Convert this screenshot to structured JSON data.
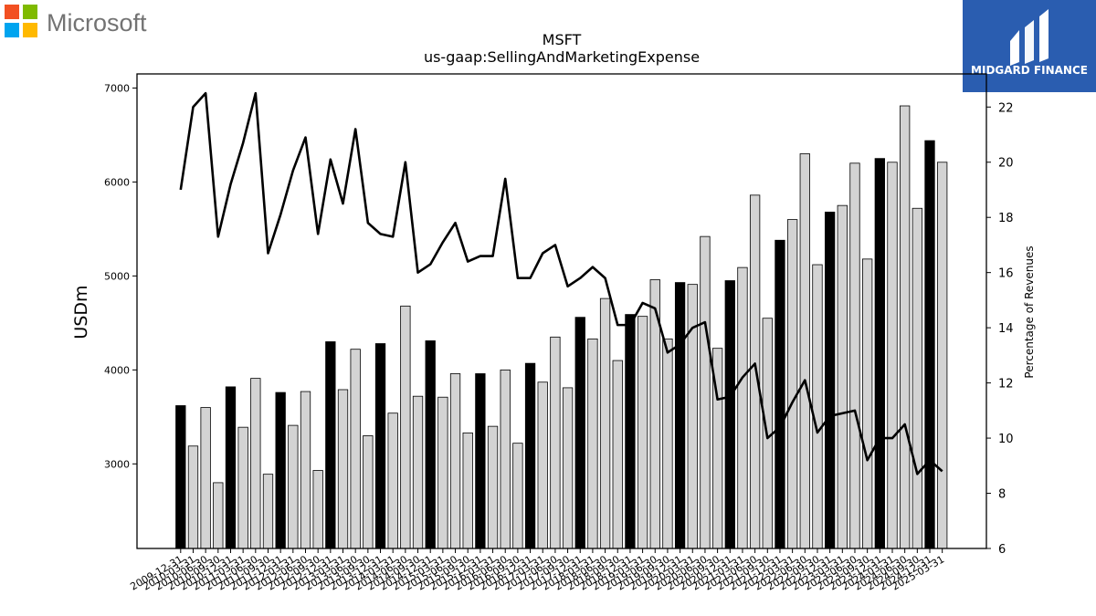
{
  "brand": {
    "left_logo_text": "Microsoft",
    "logo_colors": [
      "#f25022",
      "#7fba00",
      "#00a4ef",
      "#ffb900"
    ],
    "right_badge_text": "MIDGARD FINANCE",
    "right_badge_color": "#2a5db0"
  },
  "chart_data": {
    "type": "bar",
    "title": "MSFT",
    "subtitle": "us-gaap:SellingAndMarketingExpense",
    "ylabel": "USDm",
    "y2label": "Percentage of Revenues",
    "ylim": [
      2100,
      7150
    ],
    "y2lim": [
      6,
      23.2
    ],
    "yticks": [
      3000,
      4000,
      5000,
      6000,
      7000
    ],
    "y2ticks": [
      6,
      8,
      10,
      12,
      14,
      16,
      18,
      20,
      22
    ],
    "bar_colors": {
      "annual": "#000000",
      "quarter": "#d3d3d3"
    },
    "line_color": "#000000",
    "categories": [
      "2009-12-31",
      "2010-03-31",
      "2010-06-30",
      "2010-09-30",
      "2010-12-31",
      "2011-03-31",
      "2011-06-30",
      "2011-09-30",
      "2011-12-31",
      "2012-03-31",
      "2012-06-30",
      "2012-09-30",
      "2012-12-31",
      "2013-03-31",
      "2013-06-30",
      "2013-09-30",
      "2013-12-31",
      "2014-03-31",
      "2014-06-30",
      "2014-09-30",
      "2014-12-31",
      "2015-03-31",
      "2015-06-30",
      "2015-09-30",
      "2015-12-31",
      "2016-03-31",
      "2016-06-30",
      "2016-09-30",
      "2016-12-31",
      "2017-03-31",
      "2017-06-30",
      "2017-09-30",
      "2017-12-31",
      "2018-03-31",
      "2018-06-30",
      "2018-09-30",
      "2018-12-31",
      "2019-03-31",
      "2019-06-30",
      "2019-09-30",
      "2019-12-31",
      "2020-03-31",
      "2020-06-30",
      "2020-09-30",
      "2020-12-31",
      "2021-03-31",
      "2021-06-30",
      "2021-09-30",
      "2021-12-31",
      "2022-03-31",
      "2022-06-30",
      "2022-09-30",
      "2022-12-31",
      "2023-03-31",
      "2023-06-30",
      "2023-09-30",
      "2023-12-31",
      "2024-03-31",
      "2024-06-30",
      "2024-09-30",
      "2024-12-31",
      "2025-03-31"
    ],
    "tick_labels": [
      "2009-12-31",
      "2010-03-31",
      "2010-06-30",
      "2010-09-30",
      "2010-12-31",
      "2011-03-31",
      "2011-06-30",
      "2011-09-30",
      "2011-12-31",
      "2012-03-31",
      "2012-06-30",
      "2012-09-30",
      "2012-12-31",
      "2013-03-31",
      "2013-06-30",
      "2013-09-30",
      "2013-12-31",
      "2014-03-31",
      "2014-06-30",
      "2014-09-30",
      "2014-12-31",
      "2015-03-31",
      "2015-06-30",
      "2015-09-30",
      "2015-12-31",
      "2016-03-31",
      "2016-06-30",
      "2016-09-30",
      "2016-12-31",
      "2017-03-31",
      "2017-06-30",
      "2017-09-30",
      "2017-12-31",
      "2018-03-31",
      "2018-06-30",
      "2018-09-30",
      "2018-12-31",
      "2019-03-31",
      "2019-06-30",
      "2019-09-30",
      "2019-12-31",
      "2020-03-31",
      "2020-06-30",
      "2020-09-30",
      "2020-12-31",
      "2021-03-31",
      "2021-06-30",
      "2021-09-30",
      "2021-12-31",
      "2022-03-31",
      "2022-06-30",
      "2022-09-30",
      "2022-12-31",
      "2023-03-31",
      "2023-06-30",
      "2023-09-30",
      "2023-12-31",
      "2024-03-31",
      "2024-06-30",
      "2024-09-30",
      "2024-12-31",
      "2025-03-31"
    ],
    "annual_flags": [
      1,
      0,
      0,
      0,
      1,
      0,
      0,
      0,
      1,
      0,
      0,
      0,
      1,
      0,
      0,
      0,
      1,
      0,
      0,
      0,
      1,
      0,
      0,
      0,
      1,
      0,
      0,
      0,
      1,
      0,
      0,
      0,
      1,
      0,
      0,
      0,
      1,
      0,
      0,
      0,
      1,
      0,
      0,
      0,
      1,
      0,
      0,
      0,
      1,
      0,
      0,
      0,
      1,
      0,
      0,
      0,
      1,
      0,
      0,
      0,
      1,
      0
    ],
    "series": [
      {
        "name": "SellingAndMarketingExpense",
        "kind": "bar",
        "values": [
          3620,
          3190,
          3600,
          2800,
          3820,
          3390,
          3910,
          2890,
          3760,
          3410,
          3770,
          2930,
          4300,
          3790,
          4220,
          3300,
          4280,
          3540,
          4680,
          3720,
          4310,
          3710,
          3960,
          3330,
          3960,
          3400,
          4000,
          3220,
          4070,
          3870,
          4350,
          3810,
          4560,
          4330,
          4760,
          4100,
          4590,
          4570,
          4960,
          4330,
          4930,
          4910,
          5420,
          4230,
          4950,
          5090,
          5860,
          4550,
          5380,
          5600,
          6300,
          5120,
          5680,
          5750,
          6200,
          5180,
          6250,
          6210,
          6810,
          5720,
          6440,
          6210
        ]
      },
      {
        "name": "Percentage of Revenues",
        "kind": "line",
        "axis": "right",
        "values": [
          19.0,
          22.0,
          22.5,
          17.3,
          19.2,
          20.7,
          22.5,
          16.7,
          18.1,
          19.7,
          20.9,
          17.4,
          20.1,
          18.5,
          21.2,
          17.8,
          17.4,
          17.3,
          20.0,
          16.0,
          16.3,
          17.1,
          17.8,
          16.4,
          16.6,
          16.6,
          19.4,
          15.8,
          15.8,
          16.7,
          17.0,
          15.5,
          15.8,
          16.2,
          15.8,
          14.1,
          14.1,
          14.9,
          14.7,
          13.1,
          13.4,
          14.0,
          14.2,
          11.4,
          11.5,
          12.2,
          12.7,
          10.0,
          10.4,
          11.3,
          12.1,
          10.2,
          10.8,
          10.9,
          11.0,
          9.2,
          10.0,
          10.0,
          10.5,
          8.7,
          9.2,
          8.8
        ]
      }
    ]
  }
}
